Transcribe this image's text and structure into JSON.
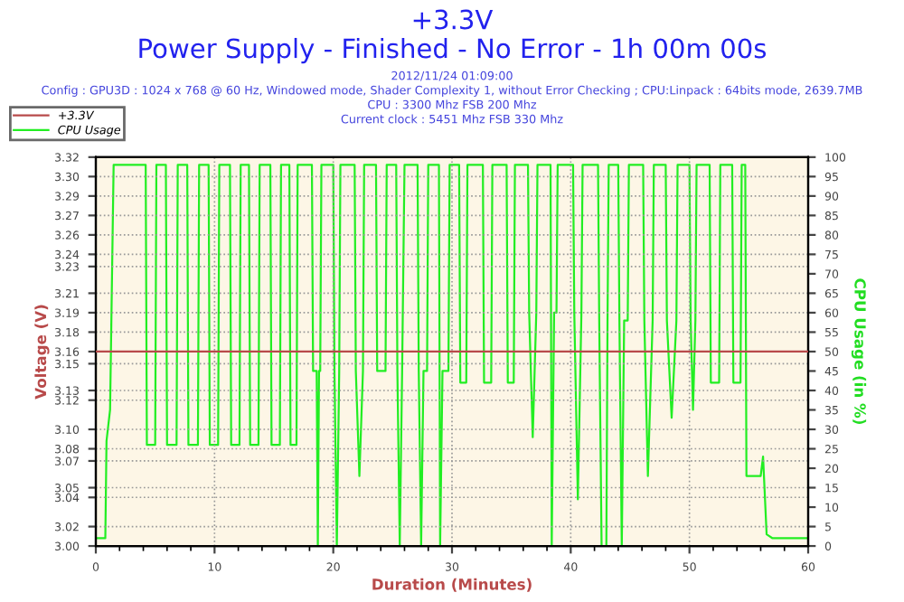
{
  "chart_data": {
    "type": "line",
    "title": "+3.3V",
    "subtitle": "Power Supply - Finished - No Error - 1h 00m 00s",
    "annotations": [
      "2012/11/24 01:09:00",
      "Config : GPU3D : 1024 x 768 @ 60 Hz, Windowed mode, Shader Complexity 1, without Error Checking ; CPU:Linpack : 64bits mode, 2639.7MB",
      "CPU : 3300 Mhz FSB 200 Mhz",
      "Current clock : 5451 Mhz FSB 330 Mhz"
    ],
    "xlabel": "Duration (Minutes)",
    "ylabel": "Voltage (V)",
    "y2label": "CPU Usage (in %)",
    "xlim": [
      0,
      60
    ],
    "xticks": [
      0,
      10,
      20,
      30,
      40,
      50,
      60
    ],
    "ylim": [
      3.0,
      3.32
    ],
    "yticks": [
      {
        "value": 3.0,
        "label": "3.00"
      },
      {
        "value": 3.016,
        "label": "3.02"
      },
      {
        "value": 3.04,
        "label": "3.04"
      },
      {
        "value": 3.048,
        "label": "3.05"
      },
      {
        "value": 3.07,
        "label": "3.07"
      },
      {
        "value": 3.08,
        "label": "3.08"
      },
      {
        "value": 3.096,
        "label": "3.10"
      },
      {
        "value": 3.12,
        "label": "3.12"
      },
      {
        "value": 3.128,
        "label": "3.13"
      },
      {
        "value": 3.15,
        "label": "3.15"
      },
      {
        "value": 3.16,
        "label": "3.16"
      },
      {
        "value": 3.176,
        "label": "3.18"
      },
      {
        "value": 3.192,
        "label": "3.19"
      },
      {
        "value": 3.208,
        "label": "3.21"
      },
      {
        "value": 3.23,
        "label": "3.23"
      },
      {
        "value": 3.24,
        "label": "3.24"
      },
      {
        "value": 3.256,
        "label": "3.26"
      },
      {
        "value": 3.272,
        "label": "3.27"
      },
      {
        "value": 3.288,
        "label": "3.29"
      },
      {
        "value": 3.304,
        "label": "3.30"
      },
      {
        "value": 3.32,
        "label": "3.32"
      }
    ],
    "y2lim": [
      0,
      100
    ],
    "y2ticks": [
      0,
      5,
      10,
      15,
      20,
      25,
      30,
      35,
      40,
      45,
      50,
      55,
      60,
      65,
      70,
      75,
      80,
      85,
      90,
      95,
      100
    ],
    "grid": true,
    "legend": "top left",
    "marker": "none",
    "line_style": "solid",
    "series": [
      {
        "name": "+3.3V",
        "color": "#b84a4a",
        "x": [
          0,
          60
        ],
        "values": [
          3.16,
          3.16
        ]
      },
      {
        "name": "CPU Usage",
        "color": "#22ee22",
        "axis": "y2",
        "x": [
          0,
          0.8,
          0.9,
          1.2,
          1.5,
          4.2,
          4.3,
          5.0,
          5.1,
          5.9,
          6.0,
          6.8,
          6.9,
          7.7,
          7.8,
          8.6,
          8.7,
          9.5,
          9.6,
          10.3,
          10.4,
          11.3,
          11.4,
          12.1,
          12.2,
          12.9,
          13.0,
          13.7,
          13.8,
          14.7,
          14.8,
          15.5,
          15.6,
          16.3,
          16.4,
          16.9,
          17.0,
          18.2,
          18.3,
          18.6,
          18.7,
          18.8,
          18.9,
          19.0,
          20.0,
          20.1,
          20.3,
          20.5,
          20.6,
          21.8,
          21.9,
          22.2,
          22.5,
          22.6,
          23.6,
          23.7,
          24.4,
          24.5,
          25.3,
          25.4,
          25.6,
          25.8,
          26.0,
          27.1,
          27.2,
          27.4,
          27.6,
          27.9,
          28.0,
          28.9,
          29.0,
          29.2,
          29.7,
          29.8,
          30.6,
          30.7,
          31.2,
          31.3,
          32.6,
          32.7,
          33.3,
          33.4,
          34.6,
          34.7,
          35.2,
          35.3,
          36.4,
          36.5,
          36.8,
          37.1,
          37.2,
          38.3,
          38.4,
          38.6,
          38.8,
          38.9,
          40.2,
          40.3,
          40.6,
          40.9,
          41.0,
          42.3,
          42.4,
          42.6,
          43.0,
          43.1,
          43.2,
          44.0,
          44.1,
          44.3,
          44.5,
          44.8,
          44.9,
          46.1,
          46.2,
          46.5,
          46.9,
          47.0,
          48.0,
          48.1,
          48.5,
          48.9,
          49.0,
          50.0,
          50.1,
          50.3,
          50.5,
          50.6,
          51.7,
          51.8,
          52.5,
          52.6,
          53.6,
          53.7,
          54.3,
          54.4,
          54.7,
          54.8,
          56.0,
          56.2,
          56.5,
          57.0,
          60
        ],
        "values": [
          2,
          2,
          27,
          35,
          98,
          98,
          26,
          26,
          98,
          98,
          26,
          26,
          98,
          98,
          26,
          26,
          98,
          98,
          26,
          26,
          98,
          98,
          26,
          26,
          98,
          98,
          26,
          26,
          98,
          98,
          26,
          26,
          98,
          98,
          26,
          26,
          98,
          98,
          45,
          45,
          0,
          45,
          45,
          98,
          98,
          45,
          0,
          45,
          98,
          98,
          45,
          18,
          45,
          98,
          98,
          45,
          45,
          98,
          98,
          45,
          0,
          45,
          98,
          98,
          45,
          0,
          45,
          45,
          98,
          98,
          0,
          45,
          45,
          98,
          98,
          42,
          42,
          98,
          98,
          42,
          42,
          98,
          98,
          42,
          42,
          98,
          98,
          60,
          28,
          60,
          98,
          98,
          0,
          60,
          60,
          98,
          98,
          60,
          12,
          60,
          98,
          98,
          58,
          0,
          0,
          58,
          98,
          98,
          58,
          0,
          58,
          58,
          98,
          98,
          58,
          18,
          58,
          98,
          98,
          58,
          33,
          58,
          98,
          98,
          58,
          35,
          58,
          98,
          98,
          42,
          42,
          98,
          98,
          42,
          42,
          98,
          98,
          18,
          18,
          23,
          3,
          2,
          2
        ]
      }
    ]
  }
}
